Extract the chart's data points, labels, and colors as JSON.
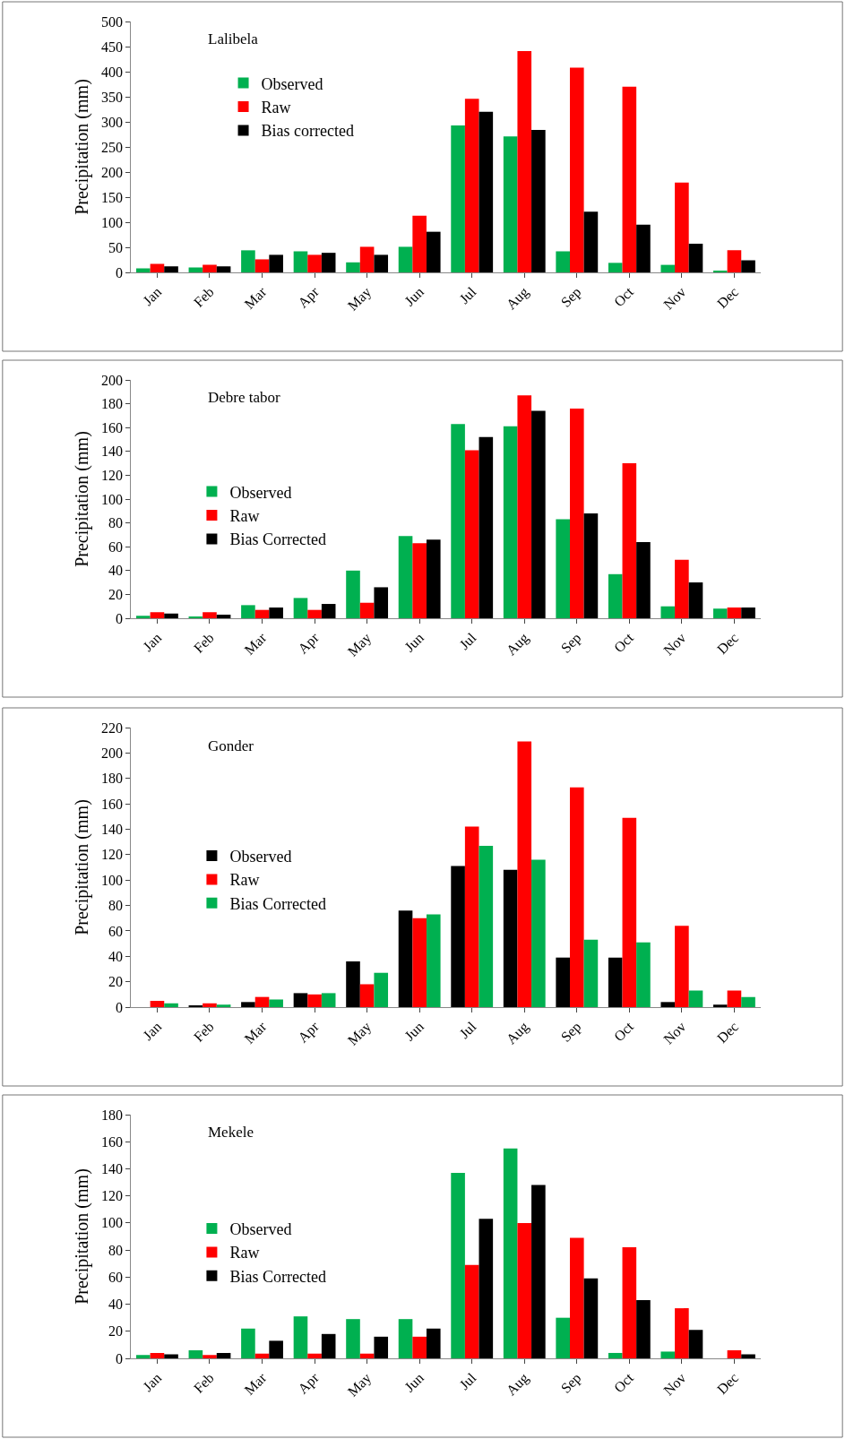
{
  "chart_data": [
    {
      "type": "bar",
      "title": "Lalibela",
      "ylabel": "Precipitation (mm)",
      "categories": [
        "Jan",
        "Feb",
        "Mar",
        "Apr",
        "May",
        "Jun",
        "Jul",
        "Aug",
        "Sep",
        "Oct",
        "Nov",
        "Dec"
      ],
      "ylim": [
        0,
        500
      ],
      "yticks": [
        0,
        50,
        100,
        150,
        200,
        250,
        300,
        350,
        400,
        450,
        500
      ],
      "grid": false,
      "legend": "top left",
      "series": [
        {
          "name": "Observed",
          "color": "#00b050",
          "values": [
            8,
            10,
            44,
            42,
            20,
            51,
            293,
            271,
            42,
            19,
            15,
            3
          ]
        },
        {
          "name": "Raw",
          "color": "#ff0000",
          "values": [
            17,
            15,
            26,
            35,
            51,
            113,
            346,
            441,
            408,
            370,
            179,
            44
          ]
        },
        {
          "name": "Bias corrected",
          "color": "#000000",
          "values": [
            12,
            12,
            35,
            39,
            35,
            81,
            320,
            284,
            121,
            95,
            57,
            24
          ]
        }
      ]
    },
    {
      "type": "bar",
      "title": "Debre tabor",
      "ylabel": "Precipitation (mm)",
      "categories": [
        "Jan",
        "Feb",
        "Mar",
        "Apr",
        "May",
        "Jun",
        "Jul",
        "Aug",
        "Sep",
        "Oct",
        "Nov",
        "Dec"
      ],
      "ylim": [
        0,
        200
      ],
      "yticks": [
        0,
        20,
        40,
        60,
        80,
        100,
        120,
        140,
        160,
        180,
        200
      ],
      "grid": false,
      "legend": "left",
      "series": [
        {
          "name": "Observed",
          "color": "#00b050",
          "values": [
            2,
            1,
            11,
            17,
            40,
            69,
            163,
            161,
            83,
            37,
            10,
            8
          ]
        },
        {
          "name": "Raw",
          "color": "#ff0000",
          "values": [
            5,
            5,
            7,
            7,
            13,
            63,
            141,
            187,
            176,
            130,
            49,
            9
          ]
        },
        {
          "name": "Bias Corrected",
          "color": "#000000",
          "values": [
            4,
            3,
            9,
            12,
            26,
            66,
            152,
            174,
            88,
            64,
            30,
            9
          ]
        }
      ]
    },
    {
      "type": "bar",
      "title": "Gonder",
      "ylabel": "Precipitation (mm)",
      "categories": [
        "Jan",
        "Feb",
        "Mar",
        "Apr",
        "May",
        "Jun",
        "Jul",
        "Aug",
        "Sep",
        "Oct",
        "Nov",
        "Dec"
      ],
      "ylim": [
        0,
        220
      ],
      "yticks": [
        0,
        20,
        40,
        60,
        80,
        100,
        120,
        140,
        160,
        180,
        200,
        220
      ],
      "grid": false,
      "legend": "left",
      "series": [
        {
          "name": "Observed",
          "color": "#000000",
          "values": [
            0,
            1,
            4,
            11,
            36,
            76,
            111,
            108,
            39,
            39,
            4,
            2
          ]
        },
        {
          "name": "Raw",
          "color": "#ff0000",
          "values": [
            5,
            3,
            8,
            10,
            18,
            70,
            142,
            209,
            173,
            149,
            64,
            13
          ]
        },
        {
          "name": "Bias Corrected",
          "color": "#00b050",
          "values": [
            3,
            2,
            6,
            11,
            27,
            73,
            127,
            116,
            53,
            51,
            13,
            8
          ]
        }
      ]
    },
    {
      "type": "bar",
      "title": "Mekele",
      "ylabel": "Precipitation (mm)",
      "categories": [
        "Jan",
        "Feb",
        "Mar",
        "Apr",
        "May",
        "Jun",
        "Jul",
        "Aug",
        "Sep",
        "Oct",
        "Nov",
        "Dec"
      ],
      "ylim": [
        0,
        180
      ],
      "yticks": [
        0,
        20,
        40,
        60,
        80,
        100,
        120,
        140,
        160,
        180
      ],
      "grid": false,
      "legend": "left",
      "series": [
        {
          "name": "Observed",
          "color": "#00b050",
          "values": [
            2.5,
            6,
            22,
            31,
            29,
            29,
            137,
            155,
            30,
            4,
            5,
            0
          ]
        },
        {
          "name": "Raw",
          "color": "#ff0000",
          "values": [
            4,
            2.5,
            3.5,
            3.5,
            3.5,
            16,
            69,
            100,
            89,
            82,
            37,
            6
          ]
        },
        {
          "name": "Bias Corrected",
          "color": "#000000",
          "values": [
            3,
            4,
            13,
            18,
            16,
            22,
            103,
            128,
            59,
            43,
            21,
            3
          ]
        }
      ]
    }
  ]
}
